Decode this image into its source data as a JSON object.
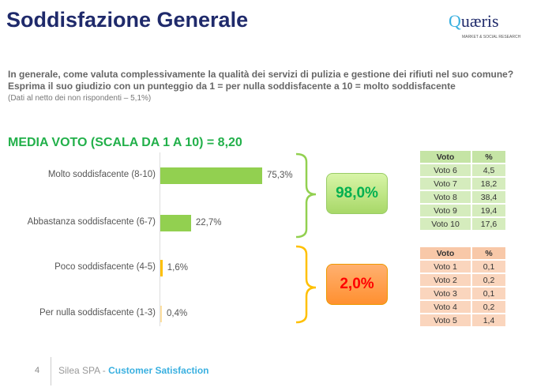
{
  "header": {
    "title": "Soddisfazione Generale",
    "logo": "Quæris",
    "logo_sub": "MARKET & SOCIAL RESEARCH"
  },
  "question": "In generale, come valuta complessivamente la qualità dei servizi di pulizia e gestione dei rifiuti nel suo comune? Esprima il suo giudizio con un punteggio da 1 = per nulla soddisfacente a 10 = molto soddisfacente",
  "note": "(Dati al netto dei non rispondenti – 5,1%)",
  "media": "MEDIA VOTO (SCALA DA 1 A 10) = 8,20",
  "chart_data": {
    "type": "bar",
    "orientation": "horizontal",
    "categories": [
      "Molto soddisfacente (8-10)",
      "Abbastanza soddisfacente (6-7)",
      "Poco soddisfacente (4-5)",
      "Per nulla soddisfacente (1-3)"
    ],
    "values": [
      75.3,
      22.7,
      1.6,
      0.4
    ],
    "labels": [
      "75,3%",
      "22,7%",
      "1,6%",
      "0,4%"
    ],
    "colors": [
      "#92d050",
      "#92d050",
      "#ffc000",
      "#ffe0a0"
    ],
    "unit": "%"
  },
  "groups": [
    {
      "label": "98,0%",
      "color": "#00b050",
      "fill": "#c5e88f"
    },
    {
      "label": "2,0%",
      "color": "#ff0000",
      "fill": "#ffa050"
    }
  ],
  "table_pos": {
    "headers": [
      "Voto",
      "%"
    ],
    "rows": [
      [
        "Voto 6",
        "4,5"
      ],
      [
        "Voto 7",
        "18,2"
      ],
      [
        "Voto 8",
        "38,4"
      ],
      [
        "Voto 9",
        "19,4"
      ],
      [
        "Voto 10",
        "17,6"
      ]
    ]
  },
  "table_neg": {
    "headers": [
      "Voto",
      "%"
    ],
    "rows": [
      [
        "Voto 1",
        "0,1"
      ],
      [
        "Voto 2",
        "0,2"
      ],
      [
        "Voto 3",
        "0,1"
      ],
      [
        "Voto 4",
        "0,2"
      ],
      [
        "Voto 5",
        "1,4"
      ]
    ]
  },
  "footer": {
    "page": "4",
    "company": "Silea SPA - ",
    "section": "Customer Satisfaction"
  }
}
